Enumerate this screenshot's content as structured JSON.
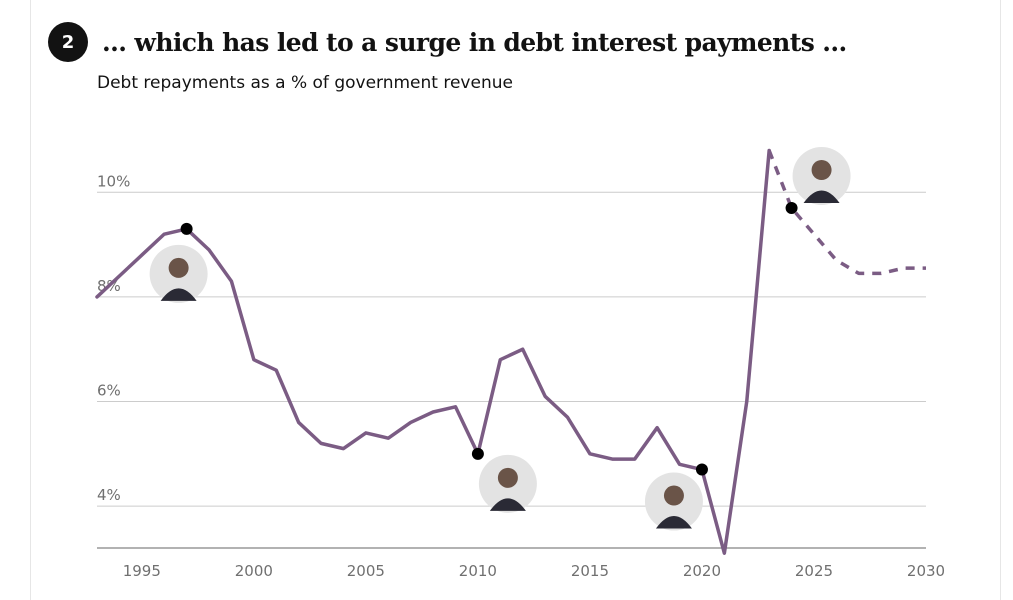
{
  "header": {
    "badge": "2",
    "title": "... which has led to a surge in debt interest payments ...",
    "subtitle": "Debt repayments as a % of government revenue"
  },
  "chart_data": {
    "type": "line",
    "title": "... which has led to a surge in debt interest payments ...",
    "subtitle": "Debt repayments as a % of government revenue",
    "xlabel": "",
    "ylabel": "",
    "xlim": [
      1993,
      2030
    ],
    "ylim": [
      3.2,
      11.0
    ],
    "x_ticks": [
      1995,
      2000,
      2005,
      2010,
      2015,
      2020,
      2025,
      2030
    ],
    "y_ticks": [
      {
        "value": 4,
        "label": "4%"
      },
      {
        "value": 6,
        "label": "6%"
      },
      {
        "value": 8,
        "label": "8%"
      },
      {
        "value": 10,
        "label": "10%"
      }
    ],
    "grid": "horizontal",
    "colors": {
      "line": "#7b5c84",
      "grid": "#cccccc",
      "axis": "#999999",
      "marker": "#000000"
    },
    "series": [
      {
        "style": "solid",
        "x": [
          1993,
          1994,
          1995,
          1996,
          1997,
          1998,
          1999,
          2000,
          2001,
          2002,
          2003,
          2004,
          2005,
          2006,
          2007,
          2008,
          2009,
          2010,
          2011,
          2012,
          2013,
          2014,
          2015,
          2016,
          2017,
          2018,
          2019,
          2020,
          2021,
          2022,
          2023
        ],
        "values": [
          8.0,
          8.4,
          8.8,
          9.2,
          9.3,
          8.9,
          8.3,
          6.8,
          6.6,
          5.6,
          5.2,
          5.1,
          5.4,
          5.3,
          5.6,
          5.8,
          5.9,
          5.0,
          6.8,
          7.0,
          6.1,
          5.7,
          5.0,
          4.9,
          4.9,
          5.5,
          4.8,
          4.7,
          3.1,
          6.0,
          10.8
        ]
      },
      {
        "style": "dashed",
        "x": [
          2023,
          2024,
          2025,
          2026,
          2027,
          2028,
          2029,
          2030
        ],
        "values": [
          10.8,
          9.7,
          9.2,
          8.7,
          8.45,
          8.45,
          8.55,
          8.55
        ]
      }
    ],
    "markers": [
      {
        "x": 1997,
        "y": 9.3,
        "icon": "chancellor-portrait-icon-1"
      },
      {
        "x": 2010,
        "y": 5.0,
        "icon": "chancellor-portrait-icon-2"
      },
      {
        "x": 2020,
        "y": 4.7,
        "icon": "chancellor-portrait-icon-3"
      },
      {
        "x": 2024,
        "y": 9.7,
        "icon": "chancellor-portrait-icon-4"
      }
    ]
  }
}
